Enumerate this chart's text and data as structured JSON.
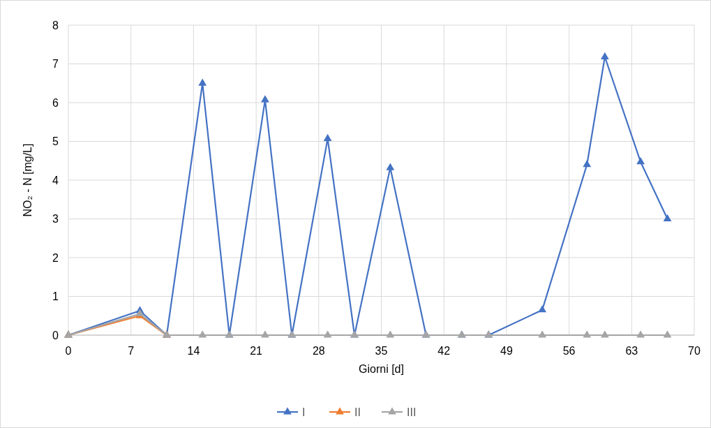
{
  "chart_data": {
    "type": "line",
    "xlabel": "Giorni [d]",
    "ylabel": "NO₂ - N [mg/L]",
    "x": [
      0,
      8,
      11,
      15,
      18,
      22,
      25,
      29,
      32,
      36,
      40,
      44,
      47,
      53,
      58,
      60,
      64,
      67
    ],
    "series": [
      {
        "name": "I",
        "color": "#4472c4",
        "values": [
          0,
          0.63,
          0,
          6.5,
          0,
          6.07,
          0,
          5.07,
          0,
          4.32,
          0,
          0,
          0,
          0.65,
          4.4,
          7.18,
          4.47,
          3.0
        ]
      },
      {
        "name": "II",
        "color": "#ed7d31",
        "values": [
          0,
          0.5,
          0,
          null,
          null,
          null,
          null,
          null,
          null,
          null,
          null,
          null,
          null,
          null,
          null,
          null,
          null,
          null
        ]
      },
      {
        "name": "III",
        "color": "#a5a5a5",
        "values": [
          0,
          0.55,
          0,
          0,
          0,
          0,
          0,
          0,
          0,
          0,
          0,
          0,
          0,
          0,
          0,
          0,
          0,
          0
        ]
      }
    ],
    "xlim": [
      0,
      70
    ],
    "xticks": [
      0,
      7,
      14,
      21,
      28,
      35,
      42,
      49,
      56,
      63,
      70
    ],
    "ylim": [
      0,
      8
    ],
    "yticks": [
      0,
      1,
      2,
      3,
      4,
      5,
      6,
      7,
      8
    ],
    "grid": true,
    "legend": "bottom",
    "marker": "triangle",
    "line_style": "solid"
  }
}
